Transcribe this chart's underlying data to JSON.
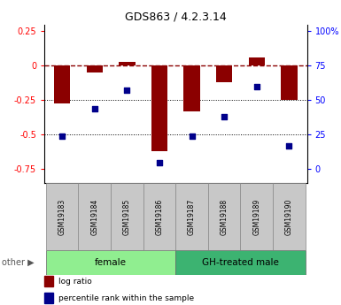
{
  "title": "GDS863 / 4.2.3.14",
  "samples": [
    "GSM19183",
    "GSM19184",
    "GSM19185",
    "GSM19186",
    "GSM19187",
    "GSM19188",
    "GSM19189",
    "GSM19190"
  ],
  "log_ratios": [
    -0.27,
    -0.05,
    0.03,
    -0.62,
    -0.33,
    -0.12,
    0.06,
    -0.25
  ],
  "percentile_ranks": [
    24,
    44,
    57,
    5,
    24,
    38,
    60,
    17
  ],
  "female_indices": [
    0,
    1,
    2,
    3
  ],
  "male_indices": [
    4,
    5,
    6,
    7
  ],
  "female_label": "female",
  "male_label": "GH-treated male",
  "other_label": "other",
  "bar_color": "#8B0000",
  "dot_color": "#00008B",
  "ylim": [
    -0.85,
    0.3
  ],
  "yticks_left": [
    0.25,
    0.0,
    -0.25,
    -0.5,
    -0.75
  ],
  "yticks_right_labels": [
    "100%",
    "75",
    "50",
    "25",
    "0"
  ],
  "yticks_right_pos": [
    0.25,
    0.0,
    -0.25,
    -0.5,
    -0.75
  ],
  "hline_y": 0,
  "dotted_lines": [
    -0.25,
    -0.5
  ],
  "legend_log_ratio": "log ratio",
  "legend_percentile": "percentile rank within the sample",
  "female_color": "#90EE90",
  "male_color": "#3CB371",
  "group_box_color": "#C8C8C8",
  "bar_width": 0.5
}
